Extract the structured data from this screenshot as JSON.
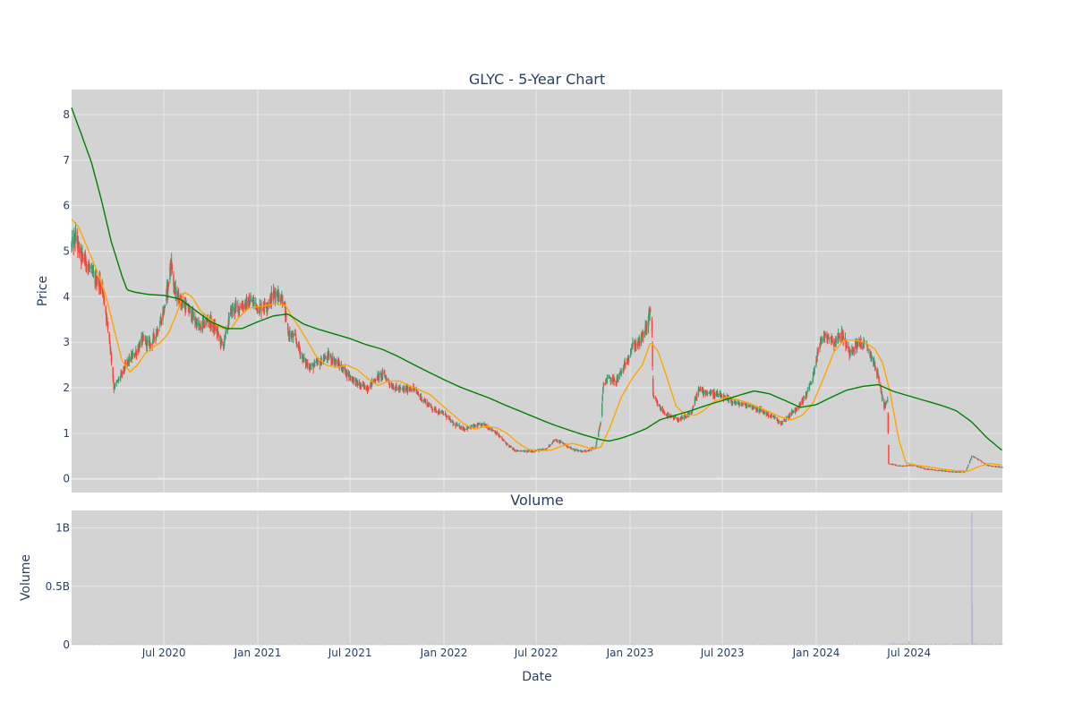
{
  "chart_data": {
    "type": "candlestick",
    "title": "GLYC - 5-Year Chart",
    "subplot_title": "Volume",
    "xlabel": "Date",
    "ylabel": "Price",
    "volume_label": "Volume",
    "x_tick_labels": [
      "Jul 2020",
      "Jan 2021",
      "Jul 2021",
      "Jan 2022",
      "Jul 2022",
      "Jan 2023",
      "Jul 2023",
      "Jan 2024",
      "Jul 2024"
    ],
    "x_tick_dates": [
      "2020-07-01",
      "2021-01-01",
      "2021-07-01",
      "2022-01-01",
      "2022-07-01",
      "2023-01-01",
      "2023-07-01",
      "2024-01-01",
      "2024-07-01"
    ],
    "x_range": [
      "2020-01-02",
      "2024-12-31"
    ],
    "price_range": [
      -0.3,
      8.55
    ],
    "price_ticks": [
      0,
      1,
      2,
      3,
      4,
      5,
      6,
      7,
      8
    ],
    "volume_range": [
      0,
      1.15
    ],
    "volume_unit": "B",
    "volume_ticks": [
      {
        "v": 0,
        "label": "0"
      },
      {
        "v": 0.5,
        "label": "0.5B"
      },
      {
        "v": 1,
        "label": "1B"
      }
    ],
    "colors": {
      "plot_bg": "#d3d3d3",
      "grid": "#e8e8ee",
      "up": "#3d9970",
      "down": "#ff4136",
      "ma_short": "#ffa500",
      "ma_long": "#008000",
      "volume": "#b8b8d8"
    },
    "grid": true,
    "price_anchors": [
      [
        "2020-01-02",
        5.1
      ],
      [
        "2020-01-10",
        5.3
      ],
      [
        "2020-01-20",
        4.9
      ],
      [
        "2020-02-01",
        4.75
      ],
      [
        "2020-02-15",
        4.4
      ],
      [
        "2020-03-01",
        4.3
      ],
      [
        "2020-03-10",
        3.6
      ],
      [
        "2020-03-18",
        2.9
      ],
      [
        "2020-03-25",
        2.0
      ],
      [
        "2020-04-05",
        2.2
      ],
      [
        "2020-04-20",
        2.55
      ],
      [
        "2020-05-05",
        2.75
      ],
      [
        "2020-05-20",
        3.05
      ],
      [
        "2020-06-05",
        2.95
      ],
      [
        "2020-06-20",
        3.3
      ],
      [
        "2020-07-01",
        3.7
      ],
      [
        "2020-07-10",
        4.3
      ],
      [
        "2020-07-15",
        4.8
      ],
      [
        "2020-07-22",
        4.1
      ],
      [
        "2020-08-05",
        3.9
      ],
      [
        "2020-08-25",
        3.6
      ],
      [
        "2020-09-10",
        3.3
      ],
      [
        "2020-09-25",
        3.5
      ],
      [
        "2020-10-10",
        3.3
      ],
      [
        "2020-10-25",
        2.9
      ],
      [
        "2020-11-10",
        3.7
      ],
      [
        "2020-12-01",
        3.8
      ],
      [
        "2020-12-20",
        3.9
      ],
      [
        "2021-01-05",
        3.75
      ],
      [
        "2021-01-20",
        3.85
      ],
      [
        "2021-02-05",
        4.1
      ],
      [
        "2021-02-20",
        3.95
      ],
      [
        "2021-03-01",
        3.2
      ],
      [
        "2021-03-15",
        3.1
      ],
      [
        "2021-04-01",
        2.6
      ],
      [
        "2021-04-15",
        2.45
      ],
      [
        "2021-05-01",
        2.55
      ],
      [
        "2021-05-20",
        2.7
      ],
      [
        "2021-06-10",
        2.5
      ],
      [
        "2021-07-01",
        2.25
      ],
      [
        "2021-07-20",
        2.05
      ],
      [
        "2021-08-05",
        2.0
      ],
      [
        "2021-08-20",
        2.2
      ],
      [
        "2021-09-05",
        2.3
      ],
      [
        "2021-09-20",
        2.05
      ],
      [
        "2021-10-10",
        1.95
      ],
      [
        "2021-11-01",
        2.0
      ],
      [
        "2021-11-20",
        1.75
      ],
      [
        "2021-12-10",
        1.55
      ],
      [
        "2022-01-05",
        1.4
      ],
      [
        "2022-01-20",
        1.2
      ],
      [
        "2022-02-10",
        1.1
      ],
      [
        "2022-03-01",
        1.15
      ],
      [
        "2022-03-20",
        1.2
      ],
      [
        "2022-04-10",
        1.05
      ],
      [
        "2022-05-01",
        0.8
      ],
      [
        "2022-05-20",
        0.62
      ],
      [
        "2022-06-10",
        0.6
      ],
      [
        "2022-07-01",
        0.62
      ],
      [
        "2022-07-20",
        0.65
      ],
      [
        "2022-08-05",
        0.85
      ],
      [
        "2022-08-20",
        0.8
      ],
      [
        "2022-09-10",
        0.65
      ],
      [
        "2022-10-01",
        0.6
      ],
      [
        "2022-10-25",
        0.68
      ],
      [
        "2022-11-05",
        1.3
      ],
      [
        "2022-11-10",
        2.1
      ],
      [
        "2022-11-20",
        2.2
      ],
      [
        "2022-12-05",
        2.15
      ],
      [
        "2022-12-20",
        2.45
      ],
      [
        "2023-01-05",
        2.9
      ],
      [
        "2023-01-20",
        3.0
      ],
      [
        "2023-02-05",
        3.4
      ],
      [
        "2023-02-12",
        3.9
      ],
      [
        "2023-02-15",
        1.8
      ],
      [
        "2023-03-01",
        1.55
      ],
      [
        "2023-03-20",
        1.35
      ],
      [
        "2023-04-10",
        1.3
      ],
      [
        "2023-05-01",
        1.45
      ],
      [
        "2023-05-15",
        1.95
      ],
      [
        "2023-06-01",
        1.9
      ],
      [
        "2023-06-20",
        1.85
      ],
      [
        "2023-07-10",
        1.75
      ],
      [
        "2023-08-01",
        1.65
      ],
      [
        "2023-08-25",
        1.6
      ],
      [
        "2023-09-15",
        1.5
      ],
      [
        "2023-10-10",
        1.35
      ],
      [
        "2023-10-25",
        1.2
      ],
      [
        "2023-11-10",
        1.4
      ],
      [
        "2023-11-25",
        1.55
      ],
      [
        "2023-12-10",
        1.8
      ],
      [
        "2023-12-25",
        2.2
      ],
      [
        "2024-01-05",
        2.9
      ],
      [
        "2024-01-20",
        3.2
      ],
      [
        "2024-02-05",
        3.0
      ],
      [
        "2024-02-20",
        3.2
      ],
      [
        "2024-03-05",
        2.8
      ],
      [
        "2024-03-25",
        3.0
      ],
      [
        "2024-04-10",
        2.9
      ],
      [
        "2024-04-25",
        2.5
      ],
      [
        "2024-05-05",
        2.1
      ],
      [
        "2024-05-12",
        1.6
      ],
      [
        "2024-05-20",
        1.7
      ],
      [
        "2024-05-22",
        0.33
      ],
      [
        "2024-06-15",
        0.28
      ],
      [
        "2024-07-10",
        0.3
      ],
      [
        "2024-08-01",
        0.22
      ],
      [
        "2024-09-01",
        0.18
      ],
      [
        "2024-10-01",
        0.15
      ],
      [
        "2024-10-20",
        0.16
      ],
      [
        "2024-11-01",
        0.5
      ],
      [
        "2024-11-15",
        0.42
      ],
      [
        "2024-12-01",
        0.3
      ],
      [
        "2024-12-31",
        0.25
      ]
    ],
    "ma_short_anchors": [
      [
        "2020-01-02",
        5.7
      ],
      [
        "2020-01-15",
        5.55
      ],
      [
        "2020-02-01",
        5.1
      ],
      [
        "2020-02-20",
        4.6
      ],
      [
        "2020-03-10",
        4.0
      ],
      [
        "2020-03-25",
        3.3
      ],
      [
        "2020-04-10",
        2.6
      ],
      [
        "2020-04-25",
        2.35
      ],
      [
        "2020-05-10",
        2.5
      ],
      [
        "2020-05-25",
        2.75
      ],
      [
        "2020-06-10",
        2.9
      ],
      [
        "2020-06-25",
        3.0
      ],
      [
        "2020-07-10",
        3.2
      ],
      [
        "2020-07-25",
        3.6
      ],
      [
        "2020-08-10",
        4.1
      ],
      [
        "2020-08-25",
        4.0
      ],
      [
        "2020-09-10",
        3.7
      ],
      [
        "2020-09-25",
        3.55
      ],
      [
        "2020-10-10",
        3.4
      ],
      [
        "2020-10-25",
        3.3
      ],
      [
        "2020-11-10",
        3.3
      ],
      [
        "2020-11-25",
        3.55
      ],
      [
        "2020-12-15",
        3.75
      ],
      [
        "2021-01-15",
        3.8
      ],
      [
        "2021-02-05",
        3.85
      ],
      [
        "2021-02-25",
        3.8
      ],
      [
        "2021-03-10",
        3.55
      ],
      [
        "2021-03-25",
        3.3
      ],
      [
        "2021-04-10",
        3.0
      ],
      [
        "2021-04-25",
        2.7
      ],
      [
        "2021-05-15",
        2.5
      ],
      [
        "2021-06-05",
        2.45
      ],
      [
        "2021-06-25",
        2.5
      ],
      [
        "2021-07-15",
        2.4
      ],
      [
        "2021-08-05",
        2.2
      ],
      [
        "2021-08-25",
        2.05
      ],
      [
        "2021-09-15",
        2.15
      ],
      [
        "2021-10-05",
        2.15
      ],
      [
        "2021-10-25",
        2.05
      ],
      [
        "2021-11-15",
        1.95
      ],
      [
        "2021-12-05",
        1.85
      ],
      [
        "2021-12-25",
        1.65
      ],
      [
        "2022-01-20",
        1.4
      ],
      [
        "2022-02-10",
        1.2
      ],
      [
        "2022-03-01",
        1.1
      ],
      [
        "2022-03-25",
        1.15
      ],
      [
        "2022-04-15",
        1.12
      ],
      [
        "2022-05-05",
        1.0
      ],
      [
        "2022-05-25",
        0.8
      ],
      [
        "2022-06-15",
        0.65
      ],
      [
        "2022-07-10",
        0.62
      ],
      [
        "2022-07-30",
        0.63
      ],
      [
        "2022-08-20",
        0.72
      ],
      [
        "2022-09-10",
        0.78
      ],
      [
        "2022-09-30",
        0.72
      ],
      [
        "2022-10-20",
        0.65
      ],
      [
        "2022-11-05",
        0.7
      ],
      [
        "2022-11-25",
        1.2
      ],
      [
        "2022-12-15",
        1.8
      ],
      [
        "2023-01-05",
        2.2
      ],
      [
        "2023-01-25",
        2.5
      ],
      [
        "2023-02-10",
        3.0
      ],
      [
        "2023-02-25",
        2.8
      ],
      [
        "2023-03-15",
        2.2
      ],
      [
        "2023-04-01",
        1.6
      ],
      [
        "2023-04-20",
        1.4
      ],
      [
        "2023-05-10",
        1.4
      ],
      [
        "2023-05-25",
        1.5
      ],
      [
        "2023-06-15",
        1.7
      ],
      [
        "2023-07-10",
        1.8
      ],
      [
        "2023-08-05",
        1.72
      ],
      [
        "2023-08-25",
        1.65
      ],
      [
        "2023-09-15",
        1.55
      ],
      [
        "2023-10-05",
        1.45
      ],
      [
        "2023-10-25",
        1.35
      ],
      [
        "2023-11-15",
        1.3
      ],
      [
        "2023-12-05",
        1.4
      ],
      [
        "2023-12-25",
        1.65
      ],
      [
        "2024-01-15",
        2.2
      ],
      [
        "2024-02-05",
        2.8
      ],
      [
        "2024-02-25",
        3.05
      ],
      [
        "2024-03-15",
        3.05
      ],
      [
        "2024-04-05",
        3.0
      ],
      [
        "2024-04-25",
        2.85
      ],
      [
        "2024-05-10",
        2.55
      ],
      [
        "2024-05-25",
        1.9
      ],
      [
        "2024-06-10",
        0.9
      ],
      [
        "2024-06-25",
        0.35
      ],
      [
        "2024-07-15",
        0.3
      ],
      [
        "2024-08-05",
        0.27
      ],
      [
        "2024-09-01",
        0.22
      ],
      [
        "2024-10-01",
        0.18
      ],
      [
        "2024-10-25",
        0.17
      ],
      [
        "2024-11-15",
        0.27
      ],
      [
        "2024-12-05",
        0.34
      ],
      [
        "2024-12-31",
        0.3
      ]
    ],
    "ma_long_anchors": [
      [
        "2020-01-02",
        8.15
      ],
      [
        "2020-01-20",
        7.6
      ],
      [
        "2020-02-10",
        6.95
      ],
      [
        "2020-03-01",
        6.1
      ],
      [
        "2020-03-20",
        5.2
      ],
      [
        "2020-04-10",
        4.45
      ],
      [
        "2020-04-20",
        4.15
      ],
      [
        "2020-05-05",
        4.1
      ],
      [
        "2020-06-01",
        4.05
      ],
      [
        "2020-07-01",
        4.03
      ],
      [
        "2020-08-01",
        3.95
      ],
      [
        "2020-09-01",
        3.7
      ],
      [
        "2020-10-01",
        3.45
      ],
      [
        "2020-11-01",
        3.3
      ],
      [
        "2020-12-01",
        3.3
      ],
      [
        "2021-01-01",
        3.45
      ],
      [
        "2021-02-01",
        3.58
      ],
      [
        "2021-03-01",
        3.62
      ],
      [
        "2021-04-01",
        3.4
      ],
      [
        "2021-05-01",
        3.28
      ],
      [
        "2021-06-01",
        3.18
      ],
      [
        "2021-07-01",
        3.08
      ],
      [
        "2021-08-01",
        2.95
      ],
      [
        "2021-09-01",
        2.85
      ],
      [
        "2021-10-01",
        2.7
      ],
      [
        "2021-11-01",
        2.52
      ],
      [
        "2021-12-01",
        2.35
      ],
      [
        "2022-01-01",
        2.18
      ],
      [
        "2022-02-01",
        2.02
      ],
      [
        "2022-03-01",
        1.9
      ],
      [
        "2022-04-01",
        1.77
      ],
      [
        "2022-05-01",
        1.62
      ],
      [
        "2022-06-01",
        1.48
      ],
      [
        "2022-07-01",
        1.34
      ],
      [
        "2022-08-01",
        1.2
      ],
      [
        "2022-09-01",
        1.08
      ],
      [
        "2022-10-01",
        0.97
      ],
      [
        "2022-11-01",
        0.87
      ],
      [
        "2022-11-20",
        0.83
      ],
      [
        "2022-12-10",
        0.88
      ],
      [
        "2023-01-01",
        0.96
      ],
      [
        "2023-02-01",
        1.1
      ],
      [
        "2023-03-01",
        1.3
      ],
      [
        "2023-04-01",
        1.4
      ],
      [
        "2023-05-01",
        1.5
      ],
      [
        "2023-06-01",
        1.62
      ],
      [
        "2023-07-01",
        1.72
      ],
      [
        "2023-08-01",
        1.83
      ],
      [
        "2023-09-01",
        1.93
      ],
      [
        "2023-10-01",
        1.87
      ],
      [
        "2023-11-01",
        1.72
      ],
      [
        "2023-12-01",
        1.57
      ],
      [
        "2024-01-01",
        1.63
      ],
      [
        "2024-02-01",
        1.8
      ],
      [
        "2024-03-01",
        1.95
      ],
      [
        "2024-04-01",
        2.03
      ],
      [
        "2024-05-01",
        2.07
      ],
      [
        "2024-06-01",
        1.92
      ],
      [
        "2024-07-01",
        1.82
      ],
      [
        "2024-08-01",
        1.72
      ],
      [
        "2024-09-01",
        1.62
      ],
      [
        "2024-10-01",
        1.5
      ],
      [
        "2024-11-01",
        1.25
      ],
      [
        "2024-12-01",
        0.9
      ],
      [
        "2024-12-31",
        0.62
      ]
    ],
    "volume_spikes": [
      [
        "2024-11-01",
        1.13
      ],
      [
        "2024-11-02",
        0.35
      ],
      [
        "2024-07-01",
        0.03
      ],
      [
        "2024-06-01",
        0.02
      ]
    ]
  }
}
